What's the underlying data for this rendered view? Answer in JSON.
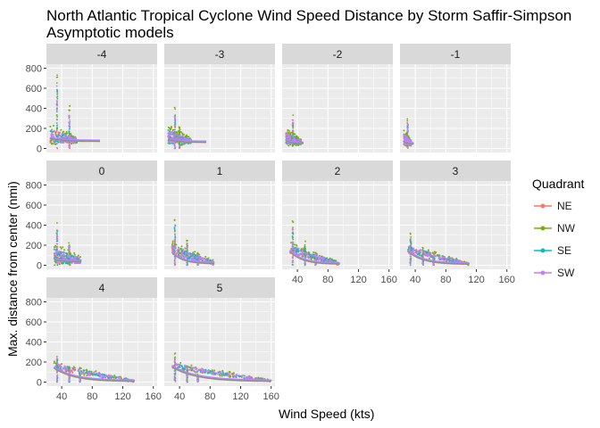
{
  "title_line1": "North Atlantic Tropical Cyclone Wind Speed Distance by Storm Saffir-Simpson",
  "title_line2": "Asymptotic models",
  "chart_data": {
    "type": "scatter",
    "xlabel": "Wind Speed (kts)",
    "ylabel": "Max. distance from center (nmi)",
    "xlim": [
      20,
      165
    ],
    "ylim": [
      -40,
      840
    ],
    "x_ticks": [
      40,
      80,
      120,
      160
    ],
    "y_ticks": [
      0,
      200,
      400,
      600,
      800
    ],
    "grid": true,
    "legend_title": "Quadrant",
    "legend_position": "right",
    "series_colors": {
      "NE": "#F8766D",
      "NW": "#7CAE00",
      "SE": "#00BFC4",
      "SW": "#C77CFF"
    },
    "legend": [
      "NE",
      "NW",
      "SE",
      "SW"
    ],
    "facets": [
      {
        "label": "-4",
        "wind": [
          25,
          60
        ],
        "tail": 90,
        "spike_x": [
          34,
          50
        ],
        "spike_h": 780,
        "base": [
          100,
          70
        ],
        "cloud": [
          60,
          200
        ]
      },
      {
        "label": "-3",
        "wind": [
          25,
          55
        ],
        "tail": 75,
        "spike_x": [
          34,
          40
        ],
        "spike_h": 420,
        "base": [
          90,
          60
        ],
        "cloud": [
          50,
          200
        ]
      },
      {
        "label": "-2",
        "wind": [
          25,
          45
        ],
        "tail": 48,
        "spike_x": [
          34
        ],
        "spike_h": 360,
        "base": [
          80,
          50
        ],
        "cloud": [
          40,
          180
        ]
      },
      {
        "label": "-1",
        "wind": [
          25,
          35
        ],
        "tail": 38,
        "spike_x": [
          30
        ],
        "spike_h": 320,
        "base": [
          70,
          45
        ],
        "cloud": [
          30,
          160
        ]
      },
      {
        "label": "0",
        "wind": [
          30,
          65
        ],
        "tail": 65,
        "spike_x": [
          34,
          50
        ],
        "spike_h": 460,
        "base": [
          60,
          35
        ],
        "cloud": [
          10,
          220
        ]
      },
      {
        "label": "1",
        "wind": [
          30,
          85
        ],
        "tail": 85,
        "spike_x": [
          34,
          50,
          64
        ],
        "spike_h": 500,
        "base": [
          130,
          15
        ],
        "cloud": [
          10,
          150
        ]
      },
      {
        "label": "2",
        "wind": [
          30,
          95
        ],
        "tail": 95,
        "spike_x": [
          34,
          50,
          64
        ],
        "spike_h": 460,
        "base": [
          140,
          10
        ],
        "cloud": [
          5,
          120
        ]
      },
      {
        "label": "3",
        "wind": [
          30,
          110
        ],
        "tail": 110,
        "spike_x": [
          34,
          50,
          64
        ],
        "spike_h": 340,
        "base": [
          140,
          8
        ],
        "cloud": [
          5,
          100
        ]
      },
      {
        "label": "4",
        "wind": [
          30,
          135
        ],
        "tail": 135,
        "spike_x": [
          34,
          50,
          64
        ],
        "spike_h": 300,
        "base": [
          140,
          5
        ],
        "cloud": [
          5,
          90
        ]
      },
      {
        "label": "5",
        "wind": [
          30,
          160
        ],
        "tail": 160,
        "spike_x": [
          34,
          50,
          64
        ],
        "spike_h": 290,
        "base": [
          150,
          5
        ],
        "cloud": [
          5,
          80
        ]
      }
    ]
  }
}
